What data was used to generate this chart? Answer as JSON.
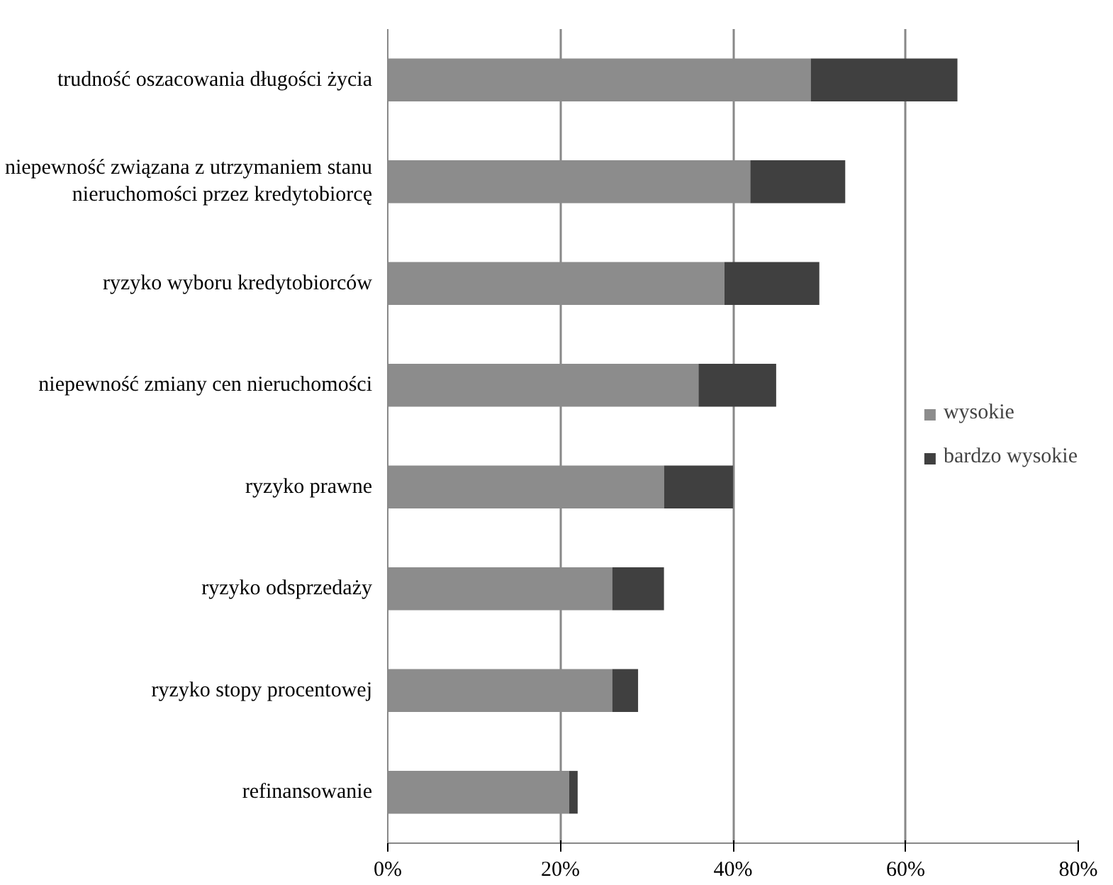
{
  "chart_data": {
    "type": "bar",
    "orientation": "horizontal",
    "stacked": true,
    "categories": [
      "trudność oszacowania długości życia",
      "niepewność związana z utrzymaniem stanu\nnieruchomości przez kredytobiorcę",
      "ryzyko wyboru kredytobiorców",
      "niepewność zmiany cen nieruchomości",
      "ryzyko prawne",
      "ryzyko odsprzedaży",
      "ryzyko stopy procentowej",
      "refinansowanie"
    ],
    "series": [
      {
        "name": "wysokie",
        "color": "#8c8c8c",
        "values": [
          49,
          42,
          39,
          36,
          32,
          26,
          26,
          21
        ]
      },
      {
        "name": "bardzo wysokie",
        "color": "#404040",
        "values": [
          17,
          11,
          11,
          9,
          8,
          6,
          3,
          1
        ]
      }
    ],
    "xlim": [
      0,
      80
    ],
    "xticks": [
      {
        "value": 0,
        "label": "0%"
      },
      {
        "value": 20,
        "label": "20%"
      },
      {
        "value": 40,
        "label": "40%"
      },
      {
        "value": 60,
        "label": "60%"
      },
      {
        "value": 80,
        "label": "80%"
      }
    ],
    "grid": "x",
    "legend": "right"
  }
}
